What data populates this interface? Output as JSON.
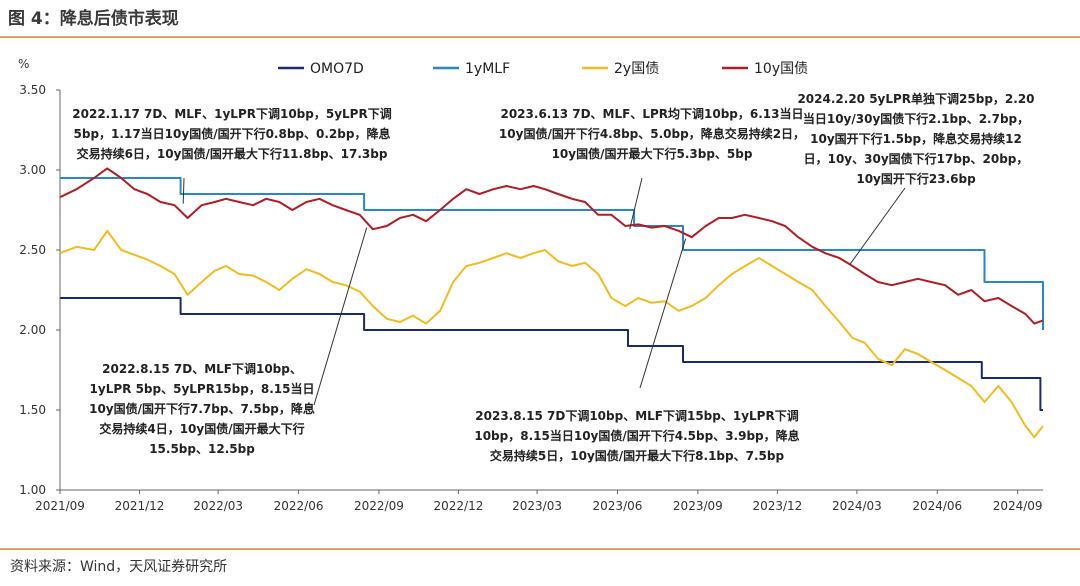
{
  "figure_title": "图 4：降息后债市表现",
  "source": "资料来源：Wind，天风证券研究所",
  "chart_data": {
    "type": "line",
    "title": "",
    "ylabel": "%",
    "ylim": [
      1.0,
      3.5
    ],
    "y_ticks": [
      "3.50",
      "3.00",
      "2.50",
      "2.00",
      "1.50",
      "1.00"
    ],
    "y_tick_values": [
      3.5,
      3.0,
      2.5,
      2.0,
      1.5,
      1.0
    ],
    "x_range": [
      "2021-09-01",
      "2024-09-30"
    ],
    "x_ticks": [
      {
        "date": "2021-09-01",
        "label": "2021/09"
      },
      {
        "date": "2021-12-01",
        "label": "2021/12"
      },
      {
        "date": "2022-03-01",
        "label": "2022/03"
      },
      {
        "date": "2022-06-01",
        "label": "2022/06"
      },
      {
        "date": "2022-09-01",
        "label": "2022/09"
      },
      {
        "date": "2022-12-01",
        "label": "2022/12"
      },
      {
        "date": "2023-03-01",
        "label": "2023/03"
      },
      {
        "date": "2023-06-01",
        "label": "2023/06"
      },
      {
        "date": "2023-09-01",
        "label": "2023/09"
      },
      {
        "date": "2023-12-01",
        "label": "2023/12"
      },
      {
        "date": "2024-03-01",
        "label": "2024/03"
      },
      {
        "date": "2024-06-01",
        "label": "2024/06"
      },
      {
        "date": "2024-09-01",
        "label": "2024/09"
      }
    ],
    "grid": false,
    "legend_position": "top",
    "series": [
      {
        "name": "OMO7D",
        "color": "#1b2a6b",
        "kind": "step",
        "points": [
          [
            "2021-09-01",
            2.2
          ],
          [
            "2022-01-17",
            2.1
          ],
          [
            "2022-08-15",
            2.0
          ],
          [
            "2023-06-13",
            1.9
          ],
          [
            "2023-08-15",
            1.8
          ],
          [
            "2024-07-22",
            1.7
          ],
          [
            "2024-09-27",
            1.5
          ]
        ]
      },
      {
        "name": "1yMLF",
        "color": "#2a86c8",
        "kind": "step",
        "points": [
          [
            "2021-09-01",
            2.95
          ],
          [
            "2022-01-17",
            2.85
          ],
          [
            "2022-08-15",
            2.75
          ],
          [
            "2023-06-20",
            2.65
          ],
          [
            "2023-08-15",
            2.5
          ],
          [
            "2024-07-25",
            2.3
          ],
          [
            "2024-09-30",
            2.0
          ]
        ]
      },
      {
        "name": "2y国债",
        "color": "#f0bc1e",
        "kind": "line",
        "points": [
          [
            "2021-09-01",
            2.48
          ],
          [
            "2021-09-20",
            2.52
          ],
          [
            "2021-10-10",
            2.5
          ],
          [
            "2021-10-25",
            2.62
          ],
          [
            "2021-11-10",
            2.5
          ],
          [
            "2021-11-25",
            2.47
          ],
          [
            "2021-12-10",
            2.44
          ],
          [
            "2021-12-25",
            2.4
          ],
          [
            "2022-01-10",
            2.35
          ],
          [
            "2022-01-25",
            2.22
          ],
          [
            "2022-02-10",
            2.3
          ],
          [
            "2022-02-25",
            2.37
          ],
          [
            "2022-03-10",
            2.4
          ],
          [
            "2022-03-25",
            2.35
          ],
          [
            "2022-04-10",
            2.34
          ],
          [
            "2022-04-25",
            2.3
          ],
          [
            "2022-05-10",
            2.25
          ],
          [
            "2022-05-25",
            2.32
          ],
          [
            "2022-06-10",
            2.38
          ],
          [
            "2022-06-25",
            2.35
          ],
          [
            "2022-07-10",
            2.3
          ],
          [
            "2022-07-25",
            2.28
          ],
          [
            "2022-08-10",
            2.24
          ],
          [
            "2022-08-25",
            2.15
          ],
          [
            "2022-09-10",
            2.07
          ],
          [
            "2022-09-25",
            2.05
          ],
          [
            "2022-10-10",
            2.09
          ],
          [
            "2022-10-25",
            2.04
          ],
          [
            "2022-11-10",
            2.12
          ],
          [
            "2022-11-25",
            2.3
          ],
          [
            "2022-12-10",
            2.4
          ],
          [
            "2022-12-25",
            2.42
          ],
          [
            "2023-01-10",
            2.45
          ],
          [
            "2023-01-25",
            2.48
          ],
          [
            "2023-02-10",
            2.45
          ],
          [
            "2023-02-25",
            2.48
          ],
          [
            "2023-03-10",
            2.5
          ],
          [
            "2023-03-25",
            2.43
          ],
          [
            "2023-04-10",
            2.4
          ],
          [
            "2023-04-25",
            2.42
          ],
          [
            "2023-05-10",
            2.35
          ],
          [
            "2023-05-25",
            2.2
          ],
          [
            "2023-06-10",
            2.15
          ],
          [
            "2023-06-25",
            2.2
          ],
          [
            "2023-07-10",
            2.17
          ],
          [
            "2023-07-25",
            2.18
          ],
          [
            "2023-08-10",
            2.12
          ],
          [
            "2023-08-25",
            2.15
          ],
          [
            "2023-09-10",
            2.2
          ],
          [
            "2023-09-25",
            2.28
          ],
          [
            "2023-10-10",
            2.35
          ],
          [
            "2023-10-25",
            2.4
          ],
          [
            "2023-11-10",
            2.45
          ],
          [
            "2023-11-25",
            2.4
          ],
          [
            "2023-12-10",
            2.35
          ],
          [
            "2023-12-25",
            2.3
          ],
          [
            "2024-01-10",
            2.25
          ],
          [
            "2024-01-25",
            2.15
          ],
          [
            "2024-02-10",
            2.05
          ],
          [
            "2024-02-25",
            1.95
          ],
          [
            "2024-03-10",
            1.92
          ],
          [
            "2024-03-25",
            1.82
          ],
          [
            "2024-04-10",
            1.78
          ],
          [
            "2024-04-25",
            1.88
          ],
          [
            "2024-05-10",
            1.85
          ],
          [
            "2024-05-25",
            1.8
          ],
          [
            "2024-06-10",
            1.75
          ],
          [
            "2024-06-25",
            1.7
          ],
          [
            "2024-07-10",
            1.65
          ],
          [
            "2024-07-25",
            1.55
          ],
          [
            "2024-08-10",
            1.65
          ],
          [
            "2024-08-25",
            1.55
          ],
          [
            "2024-09-10",
            1.4
          ],
          [
            "2024-09-20",
            1.33
          ],
          [
            "2024-09-30",
            1.4
          ]
        ]
      },
      {
        "name": "10y国债",
        "color": "#b01e24",
        "kind": "line",
        "points": [
          [
            "2021-09-01",
            2.83
          ],
          [
            "2021-09-20",
            2.88
          ],
          [
            "2021-10-10",
            2.95
          ],
          [
            "2021-10-25",
            3.01
          ],
          [
            "2021-11-10",
            2.95
          ],
          [
            "2021-11-25",
            2.88
          ],
          [
            "2021-12-10",
            2.85
          ],
          [
            "2021-12-25",
            2.8
          ],
          [
            "2022-01-10",
            2.78
          ],
          [
            "2022-01-25",
            2.7
          ],
          [
            "2022-02-10",
            2.78
          ],
          [
            "2022-02-25",
            2.8
          ],
          [
            "2022-03-10",
            2.82
          ],
          [
            "2022-03-25",
            2.8
          ],
          [
            "2022-04-10",
            2.78
          ],
          [
            "2022-04-25",
            2.82
          ],
          [
            "2022-05-10",
            2.8
          ],
          [
            "2022-05-25",
            2.75
          ],
          [
            "2022-06-10",
            2.8
          ],
          [
            "2022-06-25",
            2.82
          ],
          [
            "2022-07-10",
            2.78
          ],
          [
            "2022-07-25",
            2.75
          ],
          [
            "2022-08-10",
            2.72
          ],
          [
            "2022-08-25",
            2.63
          ],
          [
            "2022-09-10",
            2.65
          ],
          [
            "2022-09-25",
            2.7
          ],
          [
            "2022-10-10",
            2.72
          ],
          [
            "2022-10-25",
            2.68
          ],
          [
            "2022-11-10",
            2.75
          ],
          [
            "2022-11-25",
            2.82
          ],
          [
            "2022-12-10",
            2.88
          ],
          [
            "2022-12-25",
            2.85
          ],
          [
            "2023-01-10",
            2.88
          ],
          [
            "2023-01-25",
            2.9
          ],
          [
            "2023-02-10",
            2.88
          ],
          [
            "2023-02-25",
            2.9
          ],
          [
            "2023-03-10",
            2.88
          ],
          [
            "2023-03-25",
            2.85
          ],
          [
            "2023-04-10",
            2.82
          ],
          [
            "2023-04-25",
            2.8
          ],
          [
            "2023-05-10",
            2.72
          ],
          [
            "2023-05-25",
            2.72
          ],
          [
            "2023-06-10",
            2.65
          ],
          [
            "2023-06-25",
            2.66
          ],
          [
            "2023-07-10",
            2.64
          ],
          [
            "2023-07-25",
            2.65
          ],
          [
            "2023-08-10",
            2.62
          ],
          [
            "2023-08-25",
            2.58
          ],
          [
            "2023-09-10",
            2.65
          ],
          [
            "2023-09-25",
            2.7
          ],
          [
            "2023-10-10",
            2.7
          ],
          [
            "2023-10-25",
            2.72
          ],
          [
            "2023-11-10",
            2.7
          ],
          [
            "2023-11-25",
            2.68
          ],
          [
            "2023-12-10",
            2.65
          ],
          [
            "2023-12-25",
            2.58
          ],
          [
            "2024-01-10",
            2.52
          ],
          [
            "2024-01-25",
            2.48
          ],
          [
            "2024-02-10",
            2.45
          ],
          [
            "2024-02-25",
            2.4
          ],
          [
            "2024-03-10",
            2.35
          ],
          [
            "2024-03-25",
            2.3
          ],
          [
            "2024-04-10",
            2.28
          ],
          [
            "2024-04-25",
            2.3
          ],
          [
            "2024-05-10",
            2.32
          ],
          [
            "2024-05-25",
            2.3
          ],
          [
            "2024-06-10",
            2.28
          ],
          [
            "2024-06-25",
            2.22
          ],
          [
            "2024-07-10",
            2.25
          ],
          [
            "2024-07-25",
            2.18
          ],
          [
            "2024-08-10",
            2.2
          ],
          [
            "2024-08-25",
            2.15
          ],
          [
            "2024-09-10",
            2.1
          ],
          [
            "2024-09-20",
            2.04
          ],
          [
            "2024-09-30",
            2.06
          ]
        ]
      }
    ],
    "annotations": [
      {
        "id": "a2201",
        "lines": [
          "2022.1.17 7D、MLF、1yLPR下调10bp，5yLPR下调",
          "5bp，1.17当日10y国债/国开下行0.8bp、0.2bp，降息",
          "交易持续6日，10y国债/国开最大下行11.8bp、17.3bp"
        ],
        "anchor": {
          "date": "2022-01-20",
          "value": 2.79
        }
      },
      {
        "id": "a2306",
        "lines": [
          "2023.6.13 7D、MLF、LPR均下调10bp，6.13当日",
          "10y国债/国开下行4.8bp、5.0bp，降息交易持续2日，",
          "10y国债/国开最大下行5.3bp、5bp"
        ],
        "anchor": {
          "date": "2023-06-15",
          "value": 2.63
        }
      },
      {
        "id": "a2402",
        "lines": [
          "2024.2.20 5yLPR单独下调25bp，2.20",
          "当日10y/30y国债下行2.1bp、2.7bp，",
          "10y国开下行1.5bp，降息交易持续12",
          "日，10y、30y国债下行17bp、20bp，",
          "10y国开下行23.6bp"
        ],
        "anchor": {
          "date": "2024-02-22",
          "value": 2.41
        }
      },
      {
        "id": "a2208",
        "lines": [
          "2022.8.15 7D、MLF下调10bp、",
          "1yLPR 5bp、5yLPR15bp，8.15当日",
          "10y国债/国开下行7.7bp、7.5bp，降息",
          "交易持续4日，10y国债/国开最大下行",
          "15.5bp、12.5bp"
        ],
        "anchor": {
          "date": "2022-08-18",
          "value": 2.64
        }
      },
      {
        "id": "a2308",
        "lines": [
          "2023.8.15 7D下调10bp、MLF下调15bp、1yLPR下调",
          "10bp，8.15当日10y国债/国开下行4.5bp、3.9bp，降息",
          "交易持续5日，10y国债/国开最大下行8.1bp、7.5bp"
        ],
        "anchor": {
          "date": "2023-08-18",
          "value": 2.57
        }
      }
    ]
  }
}
